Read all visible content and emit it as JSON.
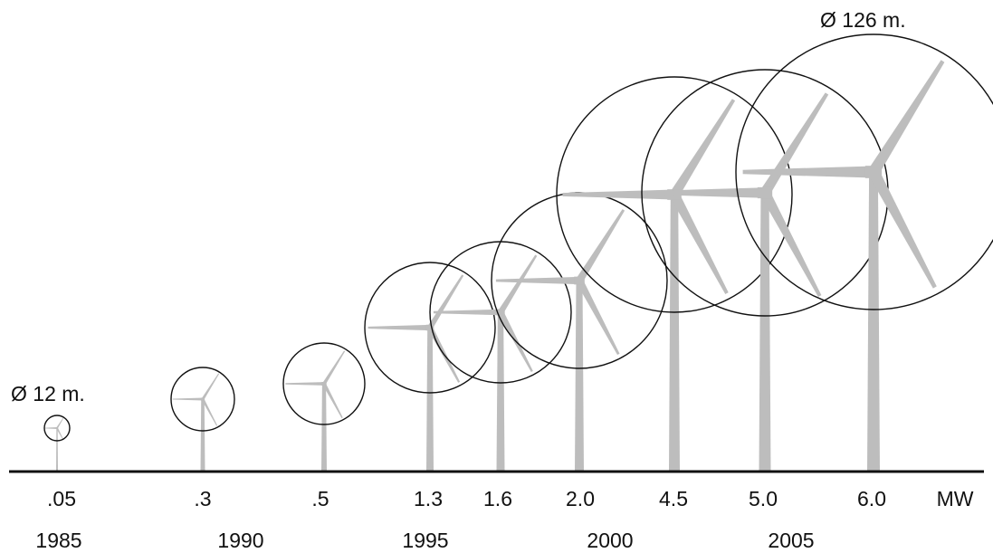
{
  "diameter_labels": {
    "smallest": "Ø 12 m.",
    "largest": "Ø 126 m."
  },
  "unit_label": "MW",
  "colors": {
    "ground_line": "#111111",
    "rotor_circle": "#111111",
    "turbine": "#bdbdbd",
    "text": "#111111"
  },
  "turbines": [
    {
      "power": ".05",
      "rotor_diameter_m": 12
    },
    {
      "power": ".3",
      "rotor_diameter_m": 27
    },
    {
      "power": ".5",
      "rotor_diameter_m": 33
    },
    {
      "power": "1.3",
      "rotor_diameter_m": 53
    },
    {
      "power": "1.6",
      "rotor_diameter_m": 55
    },
    {
      "power": "2.0",
      "rotor_diameter_m": 72
    },
    {
      "power": "4.5",
      "rotor_diameter_m": 96
    },
    {
      "power": "5.0",
      "rotor_diameter_m": 113
    },
    {
      "power": "6.0",
      "rotor_diameter_m": 126
    }
  ],
  "years": [
    "1985",
    "1990",
    "1995",
    "2000",
    "2005"
  ]
}
